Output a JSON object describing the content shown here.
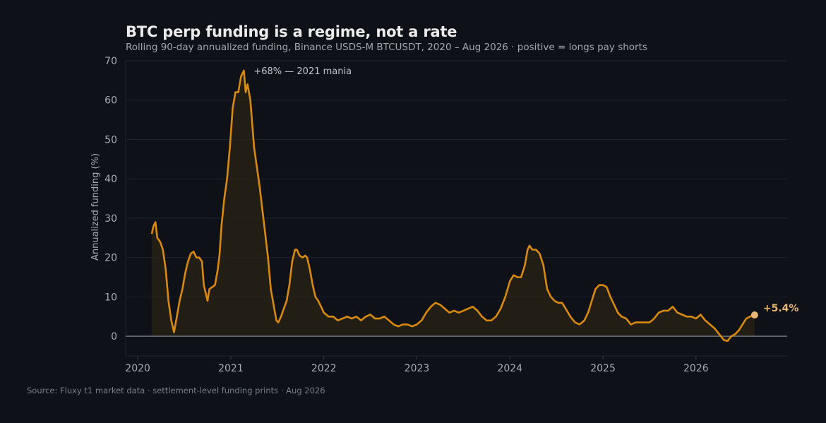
{
  "chart_data": {
    "type": "line",
    "title": "BTC perp funding is a regime, not a rate",
    "subtitle": "Rolling 90-day annualized funding, Binance USDS-M BTCUSDT, 2020 – Aug 2026 · positive = longs pay shorts",
    "ylabel": "Annualized funding (%)",
    "xlabel": "",
    "ylim": [
      -5,
      70
    ],
    "xlim": [
      2019.87,
      2026.98
    ],
    "yticks": [
      0,
      10,
      20,
      30,
      40,
      50,
      60,
      70
    ],
    "xticks": [
      2020,
      2021,
      2022,
      2023,
      2024,
      2025,
      2026
    ],
    "xtick_labels": [
      "2020",
      "2021",
      "2022",
      "2023",
      "2024",
      "2025",
      "2026"
    ],
    "grid": true,
    "series": [
      {
        "name": "",
        "color": "#d98a0e",
        "points": [
          [
            2020.15,
            26
          ],
          [
            2020.17,
            28
          ],
          [
            2020.19,
            29
          ],
          [
            2020.21,
            25
          ],
          [
            2020.24,
            24
          ],
          [
            2020.27,
            22
          ],
          [
            2020.3,
            17
          ],
          [
            2020.33,
            9
          ],
          [
            2020.36,
            4
          ],
          [
            2020.39,
            1
          ],
          [
            2020.42,
            5
          ],
          [
            2020.45,
            9
          ],
          [
            2020.48,
            12
          ],
          [
            2020.51,
            16
          ],
          [
            2020.54,
            19
          ],
          [
            2020.57,
            21
          ],
          [
            2020.6,
            21.5
          ],
          [
            2020.63,
            20
          ],
          [
            2020.66,
            20
          ],
          [
            2020.69,
            19
          ],
          [
            2020.71,
            13
          ],
          [
            2020.73,
            11
          ],
          [
            2020.75,
            9
          ],
          [
            2020.77,
            12
          ],
          [
            2020.8,
            12.5
          ],
          [
            2020.83,
            13
          ],
          [
            2020.86,
            17
          ],
          [
            2020.88,
            21
          ],
          [
            2020.9,
            28
          ],
          [
            2020.93,
            35
          ],
          [
            2020.96,
            40
          ],
          [
            2020.99,
            48
          ],
          [
            2021.02,
            58
          ],
          [
            2021.05,
            62
          ],
          [
            2021.08,
            62
          ],
          [
            2021.11,
            66
          ],
          [
            2021.14,
            67.5
          ],
          [
            2021.16,
            62
          ],
          [
            2021.18,
            64
          ],
          [
            2021.21,
            60
          ],
          [
            2021.25,
            48
          ],
          [
            2021.28,
            43
          ],
          [
            2021.31,
            38
          ],
          [
            2021.34,
            32
          ],
          [
            2021.37,
            26
          ],
          [
            2021.4,
            20
          ],
          [
            2021.43,
            12
          ],
          [
            2021.46,
            8
          ],
          [
            2021.49,
            4
          ],
          [
            2021.51,
            3.5
          ],
          [
            2021.54,
            5
          ],
          [
            2021.57,
            7
          ],
          [
            2021.6,
            9
          ],
          [
            2021.63,
            13
          ],
          [
            2021.66,
            19
          ],
          [
            2021.69,
            22
          ],
          [
            2021.71,
            22
          ],
          [
            2021.74,
            20.5
          ],
          [
            2021.77,
            20
          ],
          [
            2021.8,
            20.5
          ],
          [
            2021.82,
            20
          ],
          [
            2021.85,
            17
          ],
          [
            2021.88,
            13
          ],
          [
            2021.91,
            10
          ],
          [
            2021.94,
            9
          ],
          [
            2021.97,
            7.5
          ],
          [
            2022.0,
            6
          ],
          [
            2022.05,
            5
          ],
          [
            2022.1,
            5
          ],
          [
            2022.15,
            4
          ],
          [
            2022.2,
            4.5
          ],
          [
            2022.25,
            5
          ],
          [
            2022.3,
            4.5
          ],
          [
            2022.35,
            5
          ],
          [
            2022.4,
            4
          ],
          [
            2022.45,
            5
          ],
          [
            2022.5,
            5.5
          ],
          [
            2022.55,
            4.5
          ],
          [
            2022.6,
            4.5
          ],
          [
            2022.65,
            5
          ],
          [
            2022.7,
            4
          ],
          [
            2022.75,
            3
          ],
          [
            2022.8,
            2.5
          ],
          [
            2022.85,
            3
          ],
          [
            2022.9,
            3
          ],
          [
            2022.95,
            2.5
          ],
          [
            2023.0,
            3
          ],
          [
            2023.05,
            4
          ],
          [
            2023.1,
            6
          ],
          [
            2023.15,
            7.5
          ],
          [
            2023.2,
            8.5
          ],
          [
            2023.25,
            8
          ],
          [
            2023.3,
            7
          ],
          [
            2023.35,
            6
          ],
          [
            2023.4,
            6.5
          ],
          [
            2023.45,
            6
          ],
          [
            2023.5,
            6.5
          ],
          [
            2023.55,
            7
          ],
          [
            2023.6,
            7.5
          ],
          [
            2023.65,
            6.5
          ],
          [
            2023.7,
            5
          ],
          [
            2023.75,
            4
          ],
          [
            2023.8,
            4
          ],
          [
            2023.85,
            5
          ],
          [
            2023.9,
            7
          ],
          [
            2023.95,
            10
          ],
          [
            2024.0,
            14
          ],
          [
            2024.04,
            15.5
          ],
          [
            2024.08,
            15
          ],
          [
            2024.12,
            15
          ],
          [
            2024.16,
            18
          ],
          [
            2024.19,
            22
          ],
          [
            2024.21,
            23
          ],
          [
            2024.24,
            22
          ],
          [
            2024.28,
            22
          ],
          [
            2024.32,
            21
          ],
          [
            2024.36,
            18
          ],
          [
            2024.4,
            12
          ],
          [
            2024.44,
            10
          ],
          [
            2024.48,
            9
          ],
          [
            2024.52,
            8.5
          ],
          [
            2024.56,
            8.5
          ],
          [
            2024.6,
            7
          ],
          [
            2024.65,
            5
          ],
          [
            2024.7,
            3.5
          ],
          [
            2024.75,
            3
          ],
          [
            2024.8,
            4
          ],
          [
            2024.84,
            6
          ],
          [
            2024.88,
            9
          ],
          [
            2024.92,
            12
          ],
          [
            2024.96,
            13
          ],
          [
            2025.0,
            13
          ],
          [
            2025.04,
            12.5
          ],
          [
            2025.08,
            10
          ],
          [
            2025.12,
            8
          ],
          [
            2025.16,
            6
          ],
          [
            2025.2,
            5
          ],
          [
            2025.25,
            4.5
          ],
          [
            2025.3,
            3
          ],
          [
            2025.35,
            3.5
          ],
          [
            2025.4,
            3.5
          ],
          [
            2025.45,
            3.5
          ],
          [
            2025.5,
            3.5
          ],
          [
            2025.55,
            4.5
          ],
          [
            2025.6,
            6
          ],
          [
            2025.65,
            6.5
          ],
          [
            2025.7,
            6.5
          ],
          [
            2025.75,
            7.5
          ],
          [
            2025.8,
            6
          ],
          [
            2025.85,
            5.5
          ],
          [
            2025.9,
            5
          ],
          [
            2025.95,
            5
          ],
          [
            2026.0,
            4.5
          ],
          [
            2026.05,
            5.5
          ],
          [
            2026.1,
            4
          ],
          [
            2026.15,
            3
          ],
          [
            2026.2,
            2
          ],
          [
            2026.25,
            0.5
          ],
          [
            2026.3,
            -1
          ],
          [
            2026.34,
            -1.2
          ],
          [
            2026.38,
            0
          ],
          [
            2026.42,
            0.5
          ],
          [
            2026.46,
            1.5
          ],
          [
            2026.5,
            3
          ],
          [
            2026.54,
            4.5
          ],
          [
            2026.58,
            5
          ],
          [
            2026.63,
            5.4
          ]
        ]
      }
    ],
    "annotations": [
      {
        "text": "+68% — 2021 mania",
        "x": 2021.14,
        "y": 67.5
      }
    ],
    "last_point": {
      "x": 2026.63,
      "y": 5.4,
      "label": "+5.4%",
      "color": "#e8b773"
    },
    "fill_color": "#2b2314",
    "zero_line_color": "#6f727a"
  },
  "footer": {
    "source": "Source: Fluxy t1 market data · settlement-level funding prints · Aug 2026"
  }
}
